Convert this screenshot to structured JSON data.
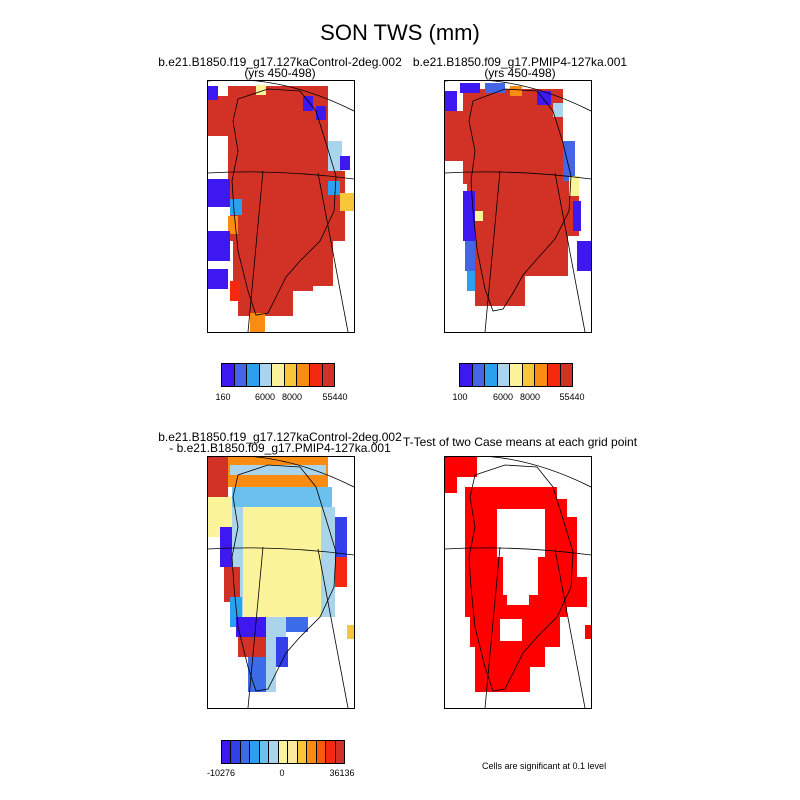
{
  "figure": {
    "title": "SON TWS (mm)"
  },
  "panels": [
    {
      "id": "control",
      "title_line1": "b.e21.B1850.f19_g17.127kaControl-2deg.002",
      "title_line2": "(yrs 450-498)",
      "colorbar": {
        "colors": [
          "#3d18f0",
          "#4466e6",
          "#2aa0ee",
          "#a9d4ec",
          "#fbf49a",
          "#f9c63a",
          "#fb8c12",
          "#f52810",
          "#d23226"
        ],
        "tick_labels": [
          "160",
          "6000",
          "8000",
          "55440"
        ]
      }
    },
    {
      "id": "pmip4",
      "title_line1": "b.e21.B1850.f09_g17.PMIP4-127ka.001",
      "title_line2": "(yrs 450-498)",
      "colorbar": {
        "colors": [
          "#3d18f0",
          "#4466e6",
          "#2aa0ee",
          "#a9d4ec",
          "#fbf49a",
          "#f9c63a",
          "#fb8c12",
          "#f52810",
          "#d23226"
        ],
        "tick_labels": [
          "100",
          "6000",
          "8000",
          "55440"
        ]
      }
    },
    {
      "id": "difference",
      "title_line1": "b.e21.B1850.f19_g17.127kaControl-2deg.002",
      "title_line2": "- b.e21.B1850.f09_g17.PMIP4-127ka.001",
      "colorbar": {
        "colors": [
          "#3d18f0",
          "#3340ea",
          "#3d6ce8",
          "#2aa0ee",
          "#6cc0ee",
          "#a9d4ec",
          "#fbf49a",
          "#fde8a0",
          "#f9c63a",
          "#fb8c12",
          "#f85a10",
          "#f52810",
          "#d23226"
        ],
        "tick_labels": [
          "-10276",
          "0",
          "36136"
        ]
      }
    },
    {
      "id": "ttest",
      "title_line1": "T-Test of two Case means at each grid point",
      "title_line2": "",
      "note": "Cells are significant at 0.1 level",
      "significant_color": "#ff0000"
    }
  ]
}
